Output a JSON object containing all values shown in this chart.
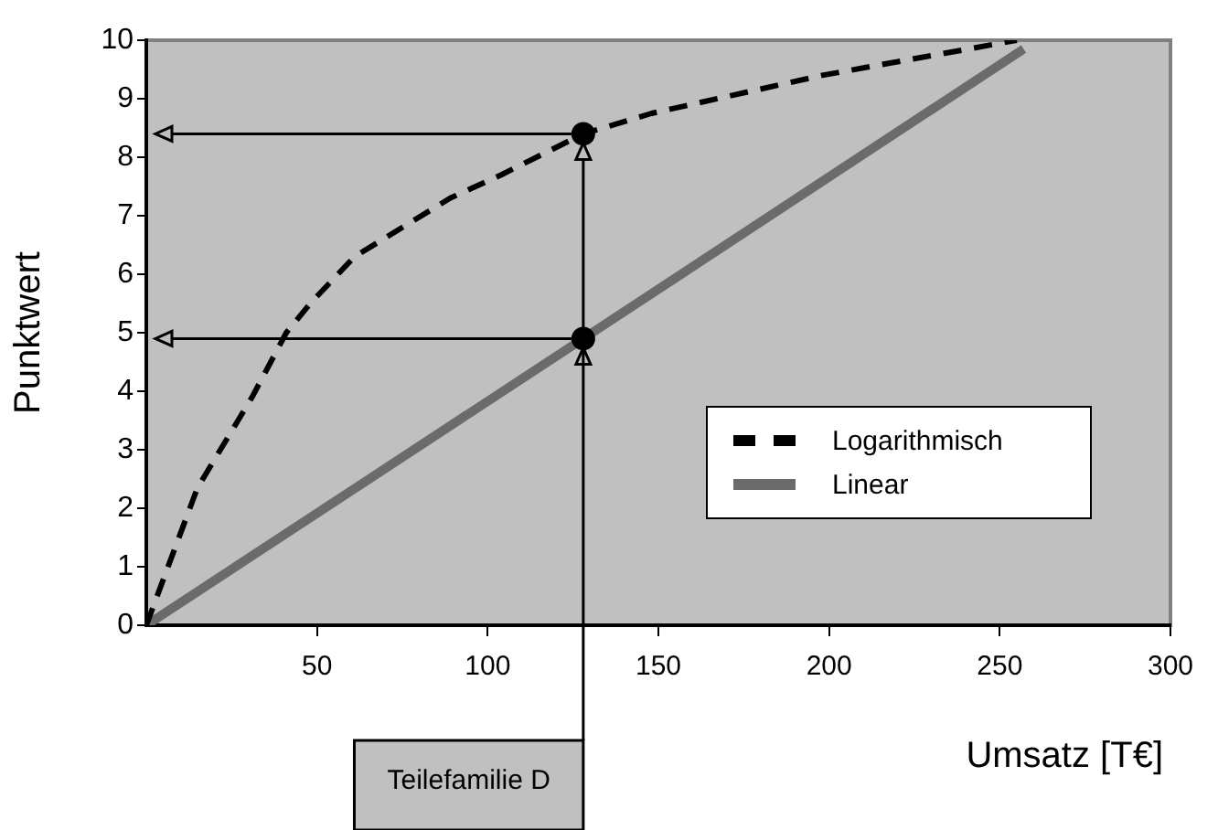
{
  "chart_data": {
    "type": "line",
    "xlabel": "Umsatz [T€]",
    "ylabel": "Punktwert",
    "xlim": [
      0,
      300
    ],
    "xticks": [
      50,
      100,
      150,
      200,
      250,
      300
    ],
    "ylim": [
      0,
      10
    ],
    "yticks": [
      0,
      1,
      2,
      3,
      4,
      5,
      6,
      7,
      8,
      9,
      10
    ],
    "grid": false,
    "legend": "right",
    "marker": "none",
    "series": [
      {
        "name": "Logarithmisch",
        "color": "#000000",
        "line_style": "dashed",
        "x": [
          0,
          7,
          15,
          31,
          41,
          48,
          61,
          75,
          89,
          104,
          128,
          148,
          198,
          255
        ],
        "values": [
          0,
          1.1,
          2.35,
          3.9,
          5.0,
          5.5,
          6.3,
          6.8,
          7.3,
          7.7,
          8.4,
          8.75,
          9.4,
          10
        ]
      },
      {
        "name": "Linear",
        "color": "#6b6b6b",
        "line_style": "solid",
        "x": [
          0,
          128,
          257
        ],
        "values": [
          0,
          4.9,
          9.85
        ]
      },
      {
        "type": "scatter",
        "color": "#000000",
        "marker": "circle",
        "x": [
          128,
          128
        ],
        "values": [
          8.4,
          4.9
        ]
      }
    ],
    "ref_lines": [
      {
        "axis": "x",
        "value": 128,
        "color": "#000000",
        "line_style": "solid"
      },
      {
        "axis": "y",
        "value": 8.4,
        "color": "#000000",
        "line_style": "solid"
      },
      {
        "axis": "y",
        "value": 4.9,
        "color": "#000000",
        "line_style": "solid"
      }
    ],
    "annotations": [
      "Teilefamilie D"
    ]
  }
}
